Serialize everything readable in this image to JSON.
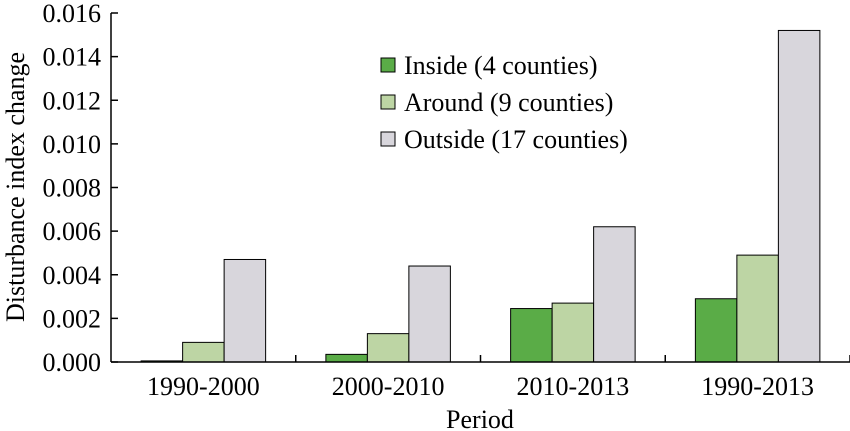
{
  "chart_data": {
    "type": "bar",
    "xlabel": "Period",
    "ylabel": "Disturbance index change",
    "ylim": [
      0,
      0.016
    ],
    "yticks": [
      "0.000",
      "0.002",
      "0.004",
      "0.006",
      "0.008",
      "0.010",
      "0.012",
      "0.014",
      "0.016"
    ],
    "yticks_values": [
      0,
      0.002,
      0.004,
      0.006,
      0.008,
      0.01,
      0.012,
      0.014,
      0.016
    ],
    "categories": [
      "1990-2000",
      "2000-2010",
      "2010-2013",
      "1990-2013"
    ],
    "grid": false,
    "legend_position": "top-center",
    "series": [
      {
        "name": "Inside (4 counties)",
        "color": "#5aac47",
        "values": [
          5e-05,
          0.00035,
          0.00245,
          0.0029
        ]
      },
      {
        "name": "Around (9 counties)",
        "color": "#bdd5a4",
        "values": [
          0.0009,
          0.0013,
          0.0027,
          0.0049
        ]
      },
      {
        "name": "Outside (17 counties)",
        "color": "#d8d6dc",
        "values": [
          0.0047,
          0.0044,
          0.0062,
          0.0152
        ]
      }
    ]
  }
}
